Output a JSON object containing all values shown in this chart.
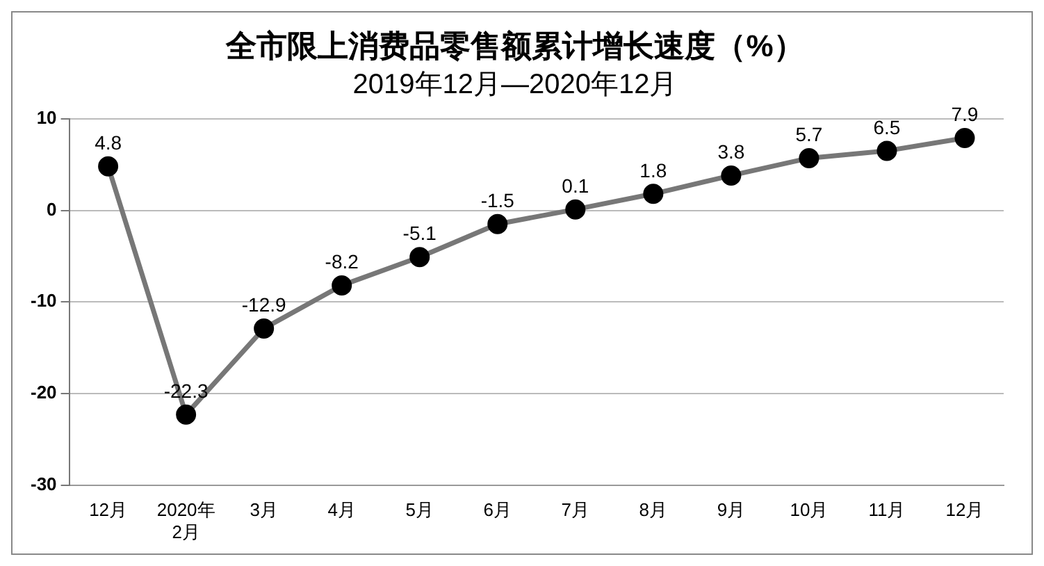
{
  "chart_data": {
    "type": "line",
    "title": "全市限上消费品零售额累计增长速度（%）",
    "subtitle": "2019年12月—2020年12月",
    "categories": [
      "12月",
      "2020年\n2月",
      "3月",
      "4月",
      "5月",
      "6月",
      "7月",
      "8月",
      "9月",
      "10月",
      "11月",
      "12月"
    ],
    "series": [
      {
        "color": "#777777",
        "values": [
          4.8,
          -22.3,
          -12.9,
          -8.2,
          -5.1,
          -1.5,
          0.1,
          1.8,
          3.8,
          5.7,
          6.5,
          7.9
        ]
      }
    ],
    "ylim": [
      -30,
      10
    ],
    "yticks": [
      -30,
      -20,
      -10,
      0,
      10
    ],
    "grid": "y",
    "legend": false,
    "marker": "circle",
    "line_style": "solid",
    "data_labels": true
  }
}
